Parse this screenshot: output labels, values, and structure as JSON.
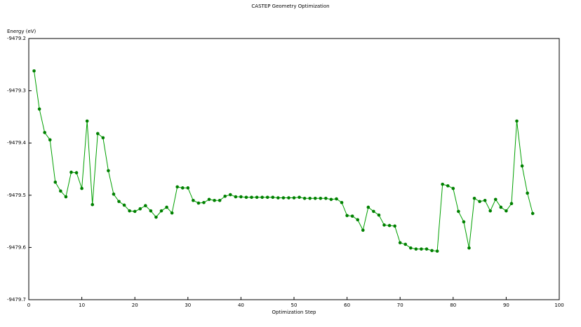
{
  "chart_data": {
    "type": "line",
    "title": "CASTEP Geometry Optimization",
    "y_label": "Energy (eV)",
    "x_label": "Optimization Step",
    "x": [
      1,
      2,
      3,
      4,
      5,
      6,
      7,
      8,
      9,
      10,
      11,
      12,
      13,
      14,
      15,
      16,
      17,
      18,
      19,
      20,
      21,
      22,
      23,
      24,
      25,
      26,
      27,
      28,
      29,
      30,
      31,
      32,
      33,
      34,
      35,
      36,
      37,
      38,
      39,
      40,
      41,
      42,
      43,
      44,
      45,
      46,
      47,
      48,
      49,
      50,
      51,
      52,
      53,
      54,
      55,
      56,
      57,
      58,
      59,
      60,
      61,
      62,
      63,
      64,
      65,
      66,
      67,
      68,
      69,
      70,
      71,
      72,
      73,
      74,
      75,
      76,
      77,
      78,
      79,
      80,
      81,
      82,
      83,
      84,
      85,
      86,
      87,
      88,
      89,
      90,
      91,
      92,
      93,
      94,
      95
    ],
    "series": [
      {
        "color": "#00a000",
        "marker_color": "#008000",
        "values": [
          -9479.262,
          -9479.335,
          -9479.38,
          -9479.394,
          -9479.475,
          -9479.492,
          -9479.503,
          -9479.456,
          -9479.457,
          -9479.487,
          -9479.358,
          -9479.518,
          -9479.382,
          -9479.39,
          -9479.453,
          -9479.498,
          -9479.512,
          -9479.519,
          -9479.53,
          -9479.531,
          -9479.526,
          -9479.52,
          -9479.53,
          -9479.542,
          -9479.53,
          -9479.523,
          -9479.534,
          -9479.484,
          -9479.486,
          -9479.486,
          -9479.51,
          -9479.515,
          -9479.514,
          -9479.508,
          -9479.51,
          -9479.51,
          -9479.502,
          -9479.499,
          -9479.503,
          -9479.503,
          -9479.504,
          -9479.504,
          -9479.504,
          -9479.504,
          -9479.504,
          -9479.504,
          -9479.505,
          -9479.505,
          -9479.505,
          -9479.505,
          -9479.504,
          -9479.506,
          -9479.506,
          -9479.506,
          -9479.506,
          -9479.506,
          -9479.508,
          -9479.507,
          -9479.514,
          -9479.539,
          -9479.54,
          -9479.547,
          -9479.567,
          -9479.523,
          -9479.531,
          -9479.538,
          -9479.557,
          -9479.558,
          -9479.559,
          -9479.591,
          -9479.594,
          -9479.601,
          -9479.603,
          -9479.603,
          -9479.603,
          -9479.606,
          -9479.607,
          -9479.479,
          -9479.482,
          -9479.487,
          -9479.531,
          -9479.551,
          -9479.601,
          -9479.506,
          -9479.512,
          -9479.51,
          -9479.53,
          -9479.508,
          -9479.523,
          -9479.53,
          -9479.516,
          -9479.358,
          -9479.444,
          -9479.496,
          -9479.535
        ]
      }
    ],
    "xlim": [
      0,
      100
    ],
    "xticks": [
      0,
      10,
      20,
      30,
      40,
      50,
      60,
      70,
      80,
      90,
      100
    ],
    "ylim": [
      -9479.7,
      -9479.2
    ],
    "yticks": [
      -9479.2,
      -9479.3,
      -9479.4,
      -9479.5,
      -9479.6,
      -9479.7
    ],
    "grid": false
  }
}
